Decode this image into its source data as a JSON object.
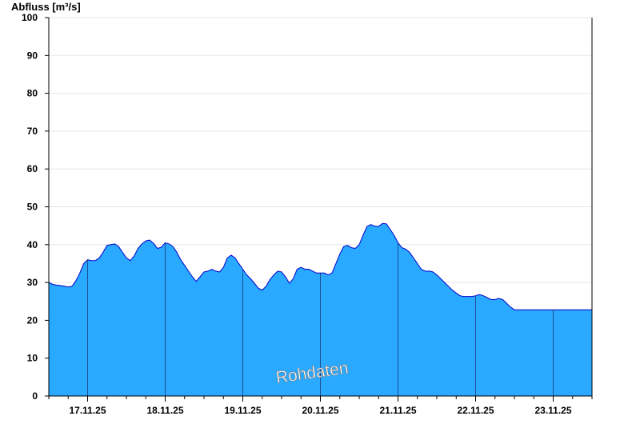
{
  "chart_data": {
    "type": "area",
    "ylabel": "Abfluss [m³/s]",
    "ylim": [
      0,
      100
    ],
    "yticks": [
      0,
      10,
      20,
      30,
      40,
      50,
      60,
      70,
      80,
      90,
      100
    ],
    "x_day_labels": [
      "17.11.25",
      "18.11.25",
      "19.11.25",
      "20.11.25",
      "21.11.25",
      "22.11.25",
      "23.11.25"
    ],
    "x_range_days": [
      16.5,
      23.5
    ],
    "grid": "horizontal",
    "fill_color": "#29A9FF",
    "line_color": "#0000CC",
    "annotation": "Rohdaten",
    "series": [
      {
        "x": [
          16.5,
          16.55,
          16.6,
          16.65,
          16.7,
          16.75,
          16.8,
          16.85,
          16.9,
          16.95,
          17.0,
          17.05,
          17.1,
          17.15,
          17.2,
          17.25,
          17.3,
          17.35,
          17.4,
          17.45,
          17.5,
          17.55,
          17.6,
          17.65,
          17.7,
          17.75,
          17.8,
          17.85,
          17.9,
          17.95,
          18.0,
          18.05,
          18.1,
          18.15,
          18.2,
          18.25,
          18.3,
          18.35,
          18.4,
          18.45,
          18.5,
          18.55,
          18.6,
          18.65,
          18.7,
          18.75,
          18.8,
          18.85,
          18.9,
          18.95,
          19.0,
          19.05,
          19.1,
          19.15,
          19.2,
          19.25,
          19.3,
          19.35,
          19.4,
          19.45,
          19.5,
          19.55,
          19.6,
          19.65,
          19.7,
          19.75,
          19.8,
          19.85,
          19.9,
          19.95,
          20.0,
          20.05,
          20.1,
          20.15,
          20.2,
          20.25,
          20.3,
          20.35,
          20.4,
          20.45,
          20.5,
          20.55,
          20.6,
          20.65,
          20.7,
          20.75,
          20.8,
          20.85,
          20.9,
          20.95,
          21.0,
          21.05,
          21.1,
          21.15,
          21.2,
          21.25,
          21.3,
          21.35,
          21.4,
          21.45,
          21.5,
          21.55,
          21.6,
          21.65,
          21.7,
          21.75,
          21.8,
          21.85,
          21.9,
          21.95,
          22.0,
          22.05,
          22.1,
          22.15,
          22.2,
          22.25,
          22.3,
          22.35,
          22.4,
          22.45,
          22.5,
          22.55,
          22.6,
          22.65,
          22.7,
          22.75,
          22.8,
          22.85,
          22.9,
          22.95,
          23.0,
          23.05,
          23.1,
          23.15,
          23.2,
          23.25,
          23.3,
          23.35,
          23.4,
          23.45,
          23.5
        ],
        "y": [
          30,
          29.5,
          29.3,
          29.2,
          29,
          28.8,
          29,
          30.5,
          32.5,
          35,
          36,
          35.8,
          35.8,
          36.5,
          38,
          39.8,
          40,
          40.2,
          39.5,
          38,
          36.5,
          35.8,
          37,
          39,
          40.2,
          41,
          41.2,
          40.3,
          39,
          39.3,
          40.5,
          40.2,
          39.5,
          38,
          36,
          34.5,
          33,
          31.5,
          30.3,
          31.5,
          32.8,
          33,
          33.5,
          33,
          32.8,
          34,
          36.5,
          37.2,
          36.5,
          35,
          33.5,
          32,
          31,
          29.8,
          28.5,
          28,
          29,
          30.8,
          32,
          33,
          32.8,
          31.5,
          29.8,
          31,
          33.5,
          34,
          33.5,
          33.5,
          33,
          32.5,
          32.5,
          32.5,
          32,
          32.5,
          35,
          37.5,
          39.5,
          39.8,
          39.2,
          39,
          40,
          42.5,
          44.8,
          45.3,
          44.9,
          44.8,
          45.6,
          45.5,
          44,
          42.5,
          40.5,
          39.2,
          38.8,
          38,
          36.5,
          35,
          33.5,
          33,
          33,
          32.8,
          32,
          31,
          30,
          29,
          28,
          27.2,
          26.5,
          26.3,
          26.3,
          26.3,
          26.5,
          26.8,
          26.5,
          26,
          25.5,
          25.5,
          25.8,
          25.5,
          24.5,
          23.5,
          22.8,
          22.8,
          22.8,
          22.8,
          22.8,
          22.8,
          22.8,
          22.8,
          22.8,
          22.8,
          22.8,
          22.8,
          22.8,
          22.8,
          22.8,
          22.8,
          22.8,
          22.8,
          22.8,
          22.8,
          22.8
        ]
      }
    ]
  }
}
